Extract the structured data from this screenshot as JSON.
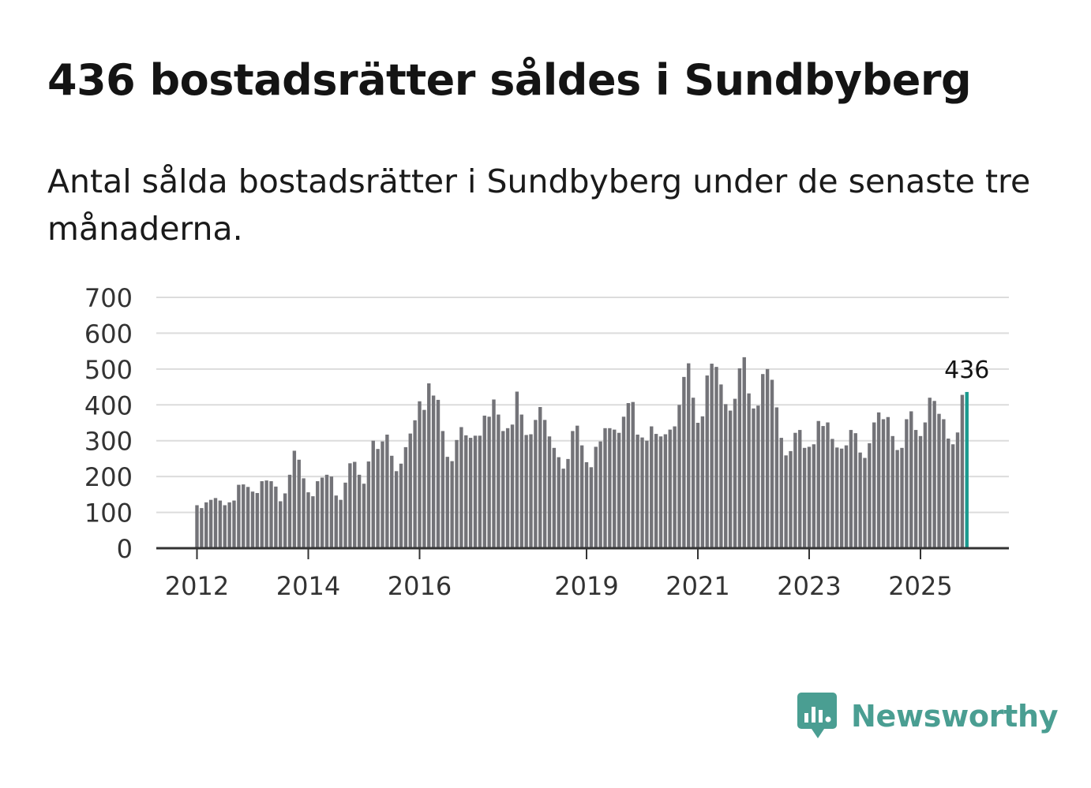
{
  "title": "436 bostadsrätter såldes i Sundbyberg",
  "subtitle": "Antal sålda bostadsrätter i Sundbyberg under de senaste tre månaderna.",
  "brand": {
    "name": "Newsworthy",
    "icon": "newsworthy-logo-icon",
    "color": "#4a9e92"
  },
  "chart_data": {
    "type": "bar",
    "title": "436 bostadsrätter såldes i Sundbyberg",
    "xlabel": "",
    "ylabel": "",
    "ylim": [
      0,
      700
    ],
    "yticks": [
      0,
      100,
      200,
      300,
      400,
      500,
      600,
      700
    ],
    "grid": true,
    "first_month": "2012-01",
    "xtick_labels": [
      {
        "label": "2012",
        "index": 0
      },
      {
        "label": "2014",
        "index": 24
      },
      {
        "label": "2016",
        "index": 48
      },
      {
        "label": "2019",
        "index": 84
      },
      {
        "label": "2021",
        "index": 108
      },
      {
        "label": "2023",
        "index": 132
      },
      {
        "label": "2025",
        "index": 156
      }
    ],
    "bar_color": "#737378",
    "highlight_color": "#1a9a8f",
    "highlight_index": 166,
    "highlight_label": "436",
    "values": [
      120,
      112,
      128,
      135,
      140,
      133,
      120,
      128,
      133,
      177,
      178,
      171,
      158,
      154,
      187,
      189,
      187,
      172,
      131,
      153,
      205,
      272,
      247,
      195,
      156,
      145,
      187,
      197,
      205,
      200,
      147,
      135,
      183,
      237,
      241,
      205,
      180,
      242,
      300,
      277,
      298,
      317,
      258,
      215,
      236,
      282,
      320,
      357,
      410,
      386,
      460,
      426,
      414,
      327,
      255,
      243,
      302,
      338,
      315,
      308,
      314,
      314,
      370,
      367,
      415,
      373,
      327,
      335,
      345,
      437,
      373,
      316,
      318,
      358,
      394,
      358,
      312,
      280,
      254,
      222,
      249,
      327,
      342,
      287,
      240,
      226,
      283,
      298,
      335,
      335,
      331,
      322,
      367,
      405,
      408,
      317,
      309,
      300,
      340,
      319,
      312,
      318,
      331,
      340,
      400,
      478,
      516,
      420,
      350,
      368,
      482,
      515,
      506,
      457,
      402,
      384,
      417,
      502,
      533,
      432,
      390,
      398,
      486,
      500,
      470,
      393,
      308,
      259,
      271,
      322,
      330,
      280,
      283,
      290,
      355,
      341,
      351,
      305,
      281,
      278,
      287,
      330,
      321,
      267,
      252,
      293,
      351,
      379,
      360,
      366,
      313,
      274,
      280,
      360,
      382,
      330,
      313,
      351,
      420,
      411,
      375,
      360,
      306,
      290,
      323,
      428,
      436
    ]
  }
}
